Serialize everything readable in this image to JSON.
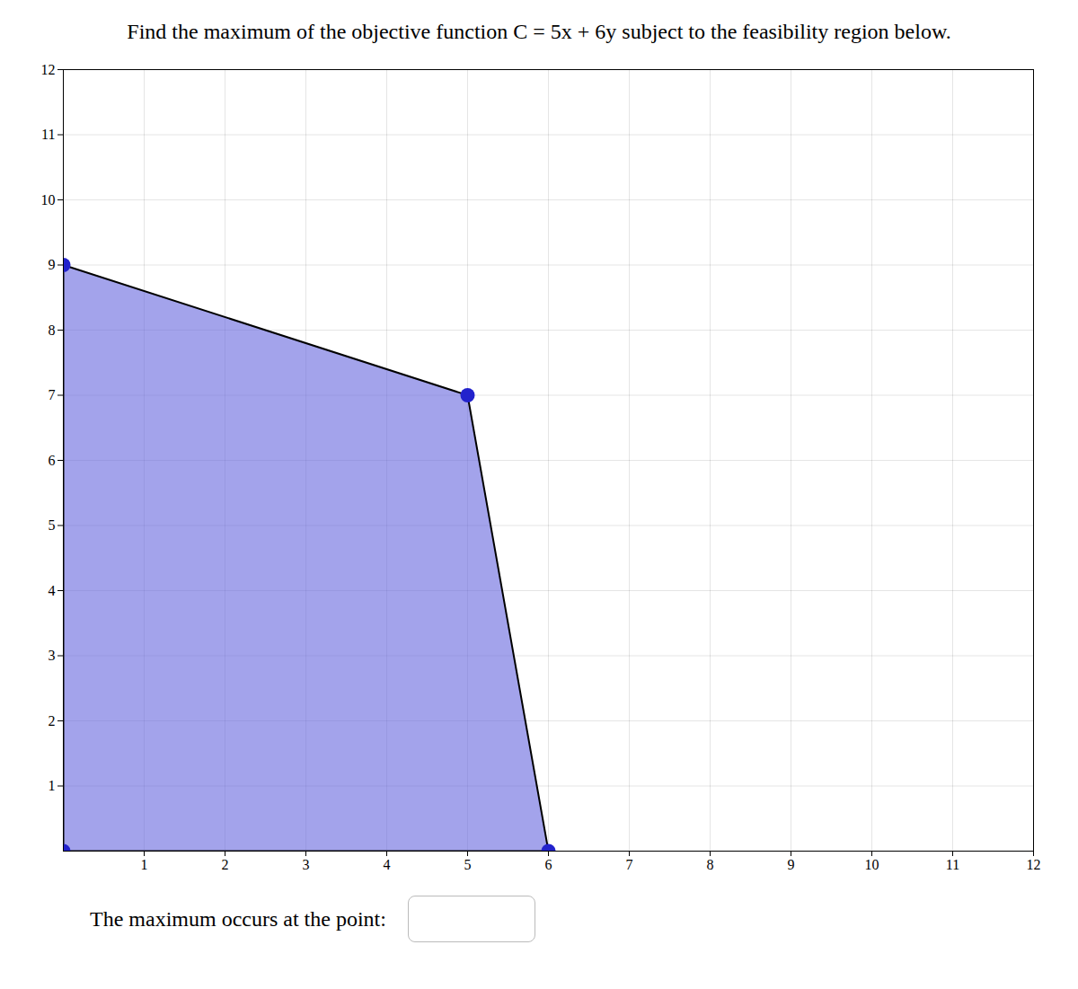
{
  "chart_data": {
    "type": "polygon",
    "title": "Find the maximum of the objective function C = 5x + 6y subject to the feasibility region below.",
    "series": [
      {
        "type": "area",
        "color": "#6666dd",
        "x": [
          0,
          5,
          6,
          0
        ],
        "values": [
          9,
          7,
          0,
          0
        ]
      },
      {
        "type": "scatter",
        "color": "#2222cc",
        "x": [
          0,
          5,
          6,
          0
        ],
        "values": [
          9,
          7,
          0,
          0
        ]
      }
    ],
    "xlim": [
      0,
      12
    ],
    "ylim": [
      0,
      12
    ],
    "xticks": [
      1,
      2,
      3,
      4,
      5,
      6,
      7,
      8,
      9,
      10,
      11,
      12
    ],
    "yticks": [
      1,
      2,
      3,
      4,
      5,
      6,
      7,
      8,
      9,
      10,
      11,
      12
    ],
    "grid": true,
    "annotations": [
      "The maximum occurs at the point:"
    ]
  }
}
